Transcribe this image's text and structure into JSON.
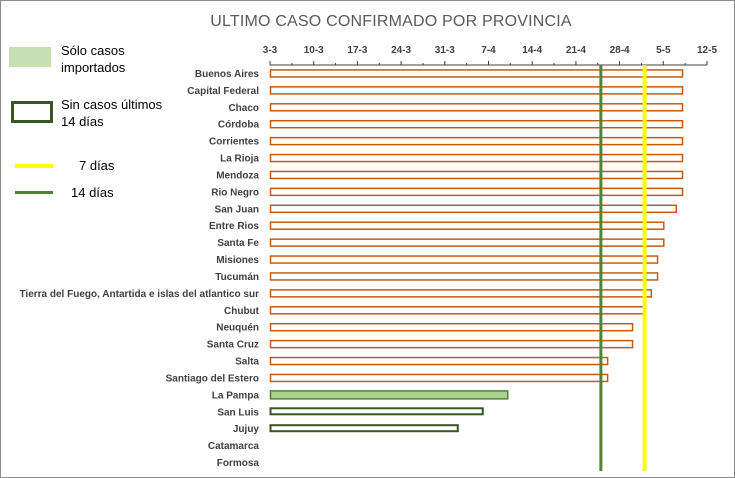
{
  "chart_data": {
    "type": "bar",
    "orientation": "horizontal",
    "title": "ULTIMO CASO CONFIRMADO POR PROVINCIA",
    "x_axis": {
      "position": "top",
      "ticks": [
        "3-3",
        "10-3",
        "17-3",
        "24-3",
        "31-3",
        "7-4",
        "14-4",
        "21-4",
        "28-4",
        "5-5",
        "12-5"
      ],
      "tick_values": [
        0,
        7,
        14,
        21,
        28,
        35,
        42,
        49,
        56,
        63,
        70
      ],
      "range_days": [
        0,
        70
      ],
      "day_zero": "3-3"
    },
    "categories": [
      "Buenos Aires",
      "Capital Federal",
      "Chaco",
      "Córdoba",
      "Corrientes",
      "La Rioja",
      "Mendoza",
      "Rio Negro",
      "San Juan",
      "Entre Rios",
      "Santa Fe",
      "Misiones",
      "Tucumán",
      "Tierra del Fuego, Antartida e islas del atlantico sur",
      "Chubut",
      "Neuquén",
      "Santa Cruz",
      "Salta",
      "Santiago del Estero",
      "La Pampa",
      "San Luis",
      "Jujuy",
      "Catamarca",
      "Formosa"
    ],
    "values_days": [
      66,
      66,
      66,
      66,
      66,
      66,
      66,
      66,
      65,
      63,
      63,
      62,
      62,
      61,
      60,
      58,
      58,
      54,
      54,
      38,
      34,
      30,
      null,
      null
    ],
    "styles": [
      "outline",
      "outline",
      "outline",
      "outline",
      "outline",
      "outline",
      "outline",
      "outline",
      "outline",
      "outline",
      "outline",
      "outline",
      "outline",
      "outline",
      "outline",
      "outline",
      "outline",
      "outline",
      "outline",
      "imported",
      "no_cases_14",
      "no_cases_14",
      "none",
      "none"
    ],
    "reference_lines": [
      {
        "label": "7 días",
        "value_days": 60,
        "color": "#ffff00"
      },
      {
        "label": "14 días",
        "value_days": 53,
        "color": "#548235"
      }
    ],
    "colors": {
      "bar_outline": "#c55a11",
      "imported_fill": "#a9d18e",
      "imported_stroke": "#548235",
      "no_cases_stroke": "#375623",
      "grid": "#d9d9d9",
      "axis": "#404040"
    }
  },
  "legend": {
    "imported": "Sólo casos importados",
    "no_cases": "Sin casos últimos 14 días",
    "line7": "7 días",
    "line14": "14 días"
  }
}
